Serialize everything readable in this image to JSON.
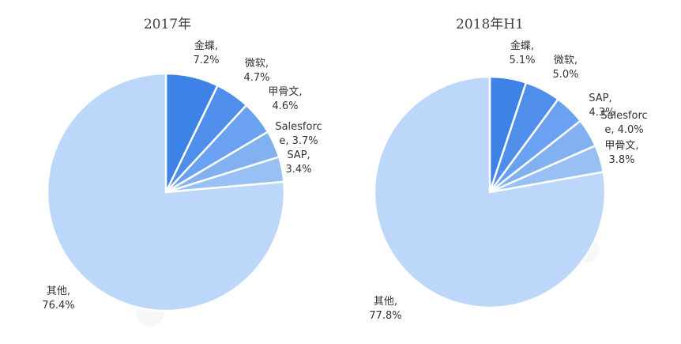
{
  "colors": {
    "other": "#bdd7fa",
    "shades": [
      "#3d82e6",
      "#4f8eeb",
      "#6aa1f0",
      "#82b1f2",
      "#98c0f5"
    ]
  },
  "chart_data": [
    {
      "type": "pie",
      "title": "2017年",
      "slices": [
        {
          "label": "金蝶,",
          "value": 7.2,
          "value_text": "7.2%"
        },
        {
          "label": "微软,",
          "value": 4.7,
          "value_text": "4.7%"
        },
        {
          "label": "甲骨文,",
          "value": 4.6,
          "value_text": "4.6%"
        },
        {
          "label": "Salesforc",
          "label2": "e, ",
          "value": 3.7,
          "value_text": "3.7%"
        },
        {
          "label": "SAP,",
          "value": 3.4,
          "value_text": "3.4%"
        },
        {
          "label": "其他,",
          "value": 76.4,
          "value_text": "76.4%"
        }
      ]
    },
    {
      "type": "pie",
      "title": "2018年H1",
      "slices": [
        {
          "label": "金蝶,",
          "value": 5.1,
          "value_text": "5.1%"
        },
        {
          "label": "微软,",
          "value": 5.0,
          "value_text": "5.0%"
        },
        {
          "label": "SAP, ",
          "value": 4.3,
          "value_text": "4.3%"
        },
        {
          "label": "Salesforc",
          "label2": "e, ",
          "value": 4.0,
          "value_text": "4.0%"
        },
        {
          "label": "甲骨文,",
          "value": 3.8,
          "value_text": "3.8%"
        },
        {
          "label": "其他,",
          "value": 77.8,
          "value_text": "77.8%"
        }
      ]
    }
  ]
}
